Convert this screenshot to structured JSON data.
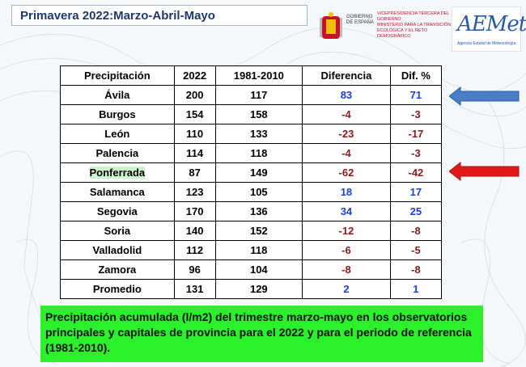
{
  "header": {
    "title": "Primavera 2022:Marzo-Abril-Mayo"
  },
  "logos": {
    "government": {
      "country": "GOBIERNO DE ESPAÑA",
      "ministry_line1": "VICEPRESIDENCIA TERCERA DEL GOBIERNO",
      "ministry_line2": "MINISTERIO PARA LA TRANSICIÓN ECOLÓGICA Y EL RETO DEMOGRÁFICO"
    },
    "aemet": {
      "mark": "AEMet",
      "subtitle": "Agencia Estatal de Meteorología"
    }
  },
  "table": {
    "headers": [
      "Precipitación",
      "2022",
      "1981-2010",
      "Diferencia",
      "Dif. %"
    ],
    "rows": [
      {
        "station": "Ávila",
        "y2022": "200",
        "ref": "117",
        "diff": "83",
        "pct": "71",
        "sign": "pos"
      },
      {
        "station": "Burgos",
        "y2022": "154",
        "ref": "158",
        "diff": "-4",
        "pct": "-3",
        "sign": "neg"
      },
      {
        "station": "León",
        "y2022": "110",
        "ref": "133",
        "diff": "-23",
        "pct": "-17",
        "sign": "neg"
      },
      {
        "station": "Palencia",
        "y2022": "114",
        "ref": "118",
        "diff": "-4",
        "pct": "-3",
        "sign": "neg"
      },
      {
        "station": "Ponferrada",
        "y2022": "87",
        "ref": "149",
        "diff": "-62",
        "pct": "-42",
        "sign": "neg"
      },
      {
        "station": "Salamanca",
        "y2022": "123",
        "ref": "105",
        "diff": "18",
        "pct": "17",
        "sign": "pos"
      },
      {
        "station": "Segovia",
        "y2022": "170",
        "ref": "136",
        "diff": "34",
        "pct": "25",
        "sign": "pos"
      },
      {
        "station": "Soria",
        "y2022": "140",
        "ref": "152",
        "diff": "-12",
        "pct": "-8",
        "sign": "neg"
      },
      {
        "station": "Valladolid",
        "y2022": "112",
        "ref": "118",
        "diff": "-6",
        "pct": "-5",
        "sign": "neg"
      },
      {
        "station": "Zamora",
        "y2022": "96",
        "ref": "104",
        "diff": "-8",
        "pct": "-8",
        "sign": "neg"
      },
      {
        "station": "Promedio",
        "y2022": "131",
        "ref": "129",
        "diff": "2",
        "pct": "1",
        "sign": "pos"
      }
    ]
  },
  "arrows": {
    "blue_color": "#4a7fc8",
    "red_color": "#e01a1a"
  },
  "note": {
    "text": "Precipitación acumulada (l/m2) del trimestre marzo-mayo en los observatorios principales y capitales de provincia para el 2022 y para el periodo de referencia (1981-2010)."
  },
  "colors": {
    "positive": "#1f3fd1",
    "negative": "#8b1a1a",
    "note_bg": "#2bf02b"
  }
}
